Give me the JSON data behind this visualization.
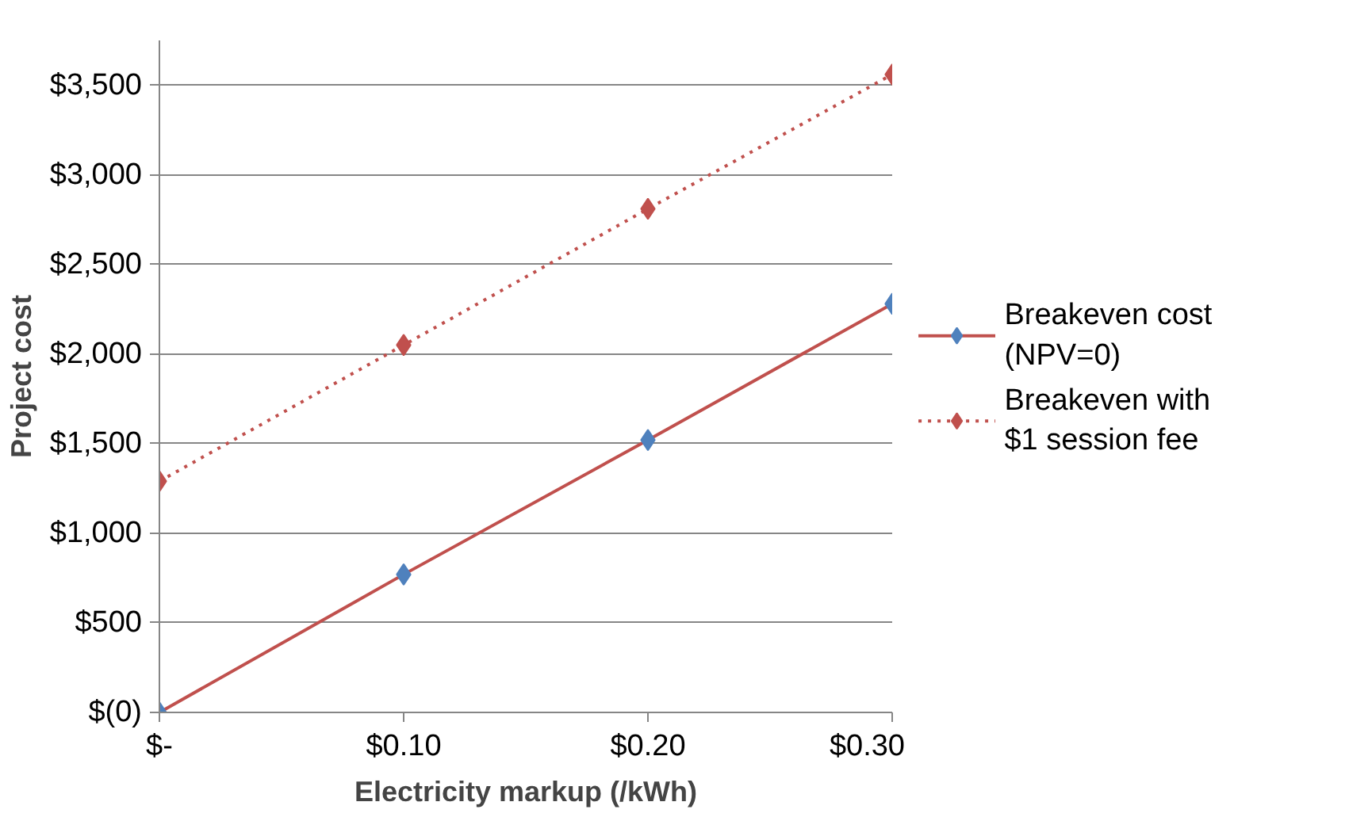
{
  "chart_data": {
    "type": "line",
    "xlabel": "Electricity markup (/kWh)",
    "ylabel": "Project cost",
    "x": [
      0,
      0.1,
      0.2,
      0.3
    ],
    "series": [
      {
        "name": "Breakeven cost\n(NPV=0)",
        "color": "#c0504d",
        "colors": [
          "#4f81bd",
          "#4f81bd",
          "#4f81bd",
          "#4f81bd"
        ],
        "line_style": "solid",
        "values": [
          0,
          770,
          1520,
          2280
        ]
      },
      {
        "name": "Breakeven with\n$1 session fee",
        "color": "#c0504d",
        "colors": [
          "#c0504d",
          "#c0504d",
          "#c0504d",
          "#c0504d"
        ],
        "line_style": "dotted",
        "values": [
          1290,
          2050,
          2810,
          3560
        ]
      }
    ],
    "xlim": [
      0,
      0.3
    ],
    "xticks": [
      {
        "value": 0,
        "label": "$-"
      },
      {
        "value": 0.1,
        "label": "$0.10"
      },
      {
        "value": 0.2,
        "label": "$0.20"
      },
      {
        "value": 0.3,
        "label": "$0.30"
      }
    ],
    "ylim": [
      0,
      3750
    ],
    "yticks": [
      {
        "value": 0,
        "label": "$(0)"
      },
      {
        "value": 500,
        "label": "$500"
      },
      {
        "value": 1000,
        "label": "$1,000"
      },
      {
        "value": 1500,
        "label": "$1,500"
      },
      {
        "value": 2000,
        "label": "$2,000"
      },
      {
        "value": 2500,
        "label": "$2,500"
      },
      {
        "value": 3000,
        "label": "$3,000"
      },
      {
        "value": 3500,
        "label": "$3,500"
      }
    ],
    "grid": "y",
    "legend": "right",
    "marker": "diamond"
  }
}
